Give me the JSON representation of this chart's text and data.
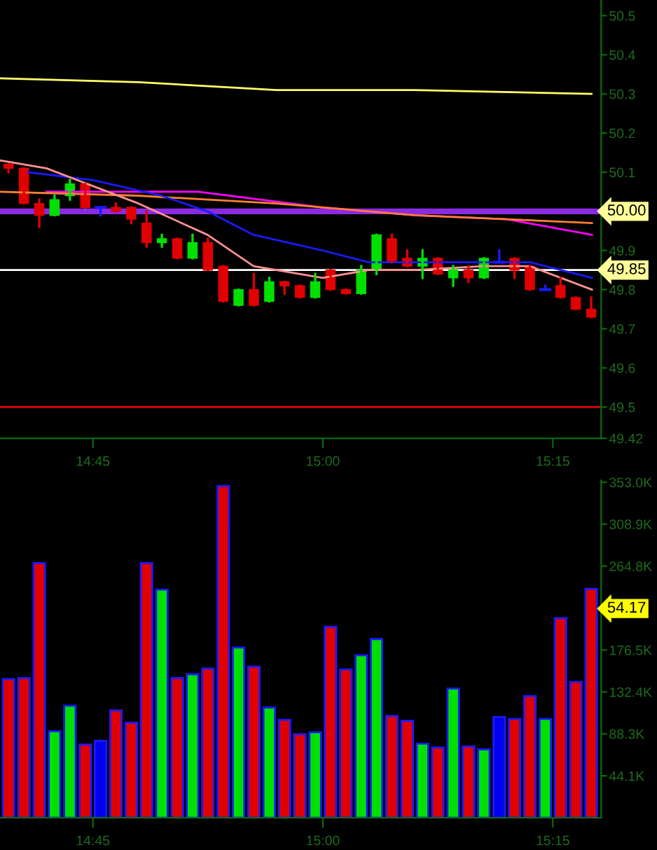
{
  "chart_data": [
    {
      "type": "candlestick",
      "x": [
        14.6583,
        14.675,
        14.6917,
        14.7083,
        14.725,
        14.7417,
        14.7583,
        14.775,
        14.7917,
        14.8083,
        14.825,
        14.8417,
        14.8583,
        14.875,
        14.8917,
        14.9083,
        14.925,
        14.9417,
        14.9583,
        14.975,
        14.9917,
        15.0083,
        15.025,
        15.0417,
        15.0583,
        15.075,
        15.0917,
        15.1083,
        15.125,
        15.1417,
        15.1583,
        15.175,
        15.1917,
        15.2083,
        15.225,
        15.2417,
        15.2583,
        15.275,
        15.2917
      ],
      "ohlc": [
        [
          50.12,
          50.12,
          50.1,
          50.11
        ],
        [
          50.11,
          50.11,
          50.02,
          50.02
        ],
        [
          50.02,
          50.03,
          49.96,
          49.99
        ],
        [
          49.99,
          50.04,
          49.99,
          50.03
        ],
        [
          50.04,
          50.08,
          50.03,
          50.07
        ],
        [
          50.07,
          50.07,
          50.01,
          50.01
        ],
        [
          50.01,
          50.01,
          49.99,
          50.01
        ],
        [
          50.01,
          50.02,
          50.0,
          50.0
        ],
        [
          50.01,
          50.01,
          49.97,
          49.98
        ],
        [
          49.97,
          50.0,
          49.91,
          49.92
        ],
        [
          49.92,
          49.94,
          49.91,
          49.93
        ],
        [
          49.93,
          49.93,
          49.88,
          49.88
        ],
        [
          49.88,
          49.94,
          49.88,
          49.92
        ],
        [
          49.92,
          49.93,
          49.85,
          49.85
        ],
        [
          49.86,
          49.86,
          49.77,
          49.77
        ],
        [
          49.76,
          49.8,
          49.76,
          49.8
        ],
        [
          49.8,
          49.84,
          49.76,
          49.76
        ],
        [
          49.77,
          49.83,
          49.77,
          49.82
        ],
        [
          49.82,
          49.82,
          49.79,
          49.81
        ],
        [
          49.81,
          49.81,
          49.78,
          49.78
        ],
        [
          49.78,
          49.84,
          49.78,
          49.82
        ],
        [
          49.85,
          49.85,
          49.8,
          49.8
        ],
        [
          49.8,
          49.8,
          49.79,
          49.79
        ],
        [
          49.79,
          49.86,
          49.79,
          49.85
        ],
        [
          49.85,
          49.94,
          49.84,
          49.94
        ],
        [
          49.93,
          49.94,
          49.87,
          49.87
        ],
        [
          49.88,
          49.9,
          49.86,
          49.86
        ],
        [
          49.86,
          49.9,
          49.83,
          49.88
        ],
        [
          49.88,
          49.88,
          49.84,
          49.84
        ],
        [
          49.83,
          49.86,
          49.81,
          49.85
        ],
        [
          49.85,
          49.86,
          49.82,
          49.83
        ],
        [
          49.83,
          49.88,
          49.83,
          49.88
        ],
        [
          49.87,
          49.9,
          49.87,
          49.87
        ],
        [
          49.88,
          49.88,
          49.83,
          49.85
        ],
        [
          49.86,
          49.86,
          49.8,
          49.8
        ],
        [
          49.8,
          49.81,
          49.8,
          49.8
        ],
        [
          49.81,
          49.83,
          49.78,
          49.78
        ],
        [
          49.78,
          49.78,
          49.75,
          49.75
        ],
        [
          49.75,
          49.78,
          49.73,
          49.73
        ]
      ],
      "series": [
        {
          "type": "line",
          "color": "#ffff66",
          "x": [
            14.6494,
            14.7996,
            14.9497,
            15.0998,
            15.292
          ],
          "values": [
            50.34,
            50.33,
            50.31,
            50.31,
            50.3
          ]
        },
        {
          "type": "line",
          "color": "#ff00ff",
          "x": [
            14.6995,
            14.8646,
            14.9997,
            15.0998,
            15.1999,
            15.2925
          ],
          "values": [
            50.05,
            50.05,
            50.01,
            49.99,
            49.98,
            49.94
          ]
        },
        {
          "type": "line",
          "color": "#ff8030",
          "x": [
            14.6494,
            14.7996,
            14.9497,
            15.0998,
            15.1999,
            15.2925
          ],
          "values": [
            50.05,
            50.04,
            50.02,
            49.99,
            49.98,
            49.97
          ]
        },
        {
          "type": "line",
          "color": "#1a1aff",
          "x": [
            14.6794,
            14.7495,
            14.8246,
            14.8746,
            14.9247,
            14.9997,
            15.0498,
            15.1499,
            15.225,
            15.2925
          ],
          "values": [
            50.1,
            50.08,
            50.04,
            50.0,
            49.94,
            49.9,
            49.87,
            49.87,
            49.87,
            49.83
          ]
        },
        {
          "type": "line",
          "color": "#ff9090",
          "x": [
            14.6494,
            14.6995,
            14.7996,
            14.8746,
            14.9247,
            14.9997,
            15.0498,
            15.0998,
            15.1749,
            15.225,
            15.2925
          ],
          "values": [
            50.13,
            50.11,
            50.02,
            49.94,
            49.86,
            49.83,
            49.85,
            49.85,
            49.86,
            49.86,
            49.8
          ]
        }
      ],
      "ref_lines": [
        {
          "axis": "y",
          "value": 50.0,
          "label": "50.00",
          "color": "#8a2be2"
        },
        {
          "axis": "y",
          "value": 49.85,
          "label": "49.85",
          "color": "#ffffff"
        },
        {
          "axis": "y",
          "value": 49.5,
          "label": null,
          "color": "#e00000"
        }
      ],
      "xlim": [
        14.649,
        15.3025
      ],
      "xticks": [
        {
          "value": 14.75,
          "label": "14:45"
        },
        {
          "value": 15.0,
          "label": "15:00"
        },
        {
          "value": 15.25,
          "label": "15:15"
        }
      ],
      "ylim": [
        49.42,
        50.54
      ],
      "yticks": [
        {
          "value": 49.42,
          "label": "49.42"
        },
        49.5,
        49.6,
        49.7,
        49.8,
        49.9,
        {
          "value": 50.0,
          "label": null
        },
        50.1,
        50.2,
        50.3,
        50.4,
        50.5
      ],
      "grid": false,
      "legend": false
    },
    {
      "type": "bar",
      "x": [
        14.6583,
        14.675,
        14.6917,
        14.7083,
        14.725,
        14.7417,
        14.7583,
        14.775,
        14.7917,
        14.8083,
        14.825,
        14.8417,
        14.8583,
        14.875,
        14.8917,
        14.9083,
        14.925,
        14.9417,
        14.9583,
        14.975,
        14.9917,
        15.0083,
        15.025,
        15.0417,
        15.0583,
        15.075,
        15.0917,
        15.1083,
        15.125,
        15.1417,
        15.1583,
        15.175,
        15.1917,
        15.2083,
        15.225,
        15.2417,
        15.2583,
        15.275,
        15.2917
      ],
      "values": [
        146,
        147,
        268,
        91,
        118,
        77,
        81,
        113,
        100,
        268,
        240,
        147,
        151,
        157,
        349,
        179,
        159,
        116,
        103,
        88,
        90,
        201,
        156,
        171,
        188,
        107,
        102,
        78,
        74,
        136,
        75,
        72,
        106,
        104,
        128,
        104,
        210,
        143,
        241
      ],
      "colors": [
        "#e00000",
        "#e00000",
        "#e00000",
        "#00e000",
        "#00e000",
        "#e00000",
        "#0000ee",
        "#e00000",
        "#e00000",
        "#e00000",
        "#00e000",
        "#e00000",
        "#00e000",
        "#e00000",
        "#e00000",
        "#00e000",
        "#e00000",
        "#00e000",
        "#e00000",
        "#e00000",
        "#00e000",
        "#e00000",
        "#e00000",
        "#00e000",
        "#00e000",
        "#e00000",
        "#e00000",
        "#00e000",
        "#e00000",
        "#00e000",
        "#e00000",
        "#00e000",
        "#0000ee",
        "#e00000",
        "#e00000",
        "#00e000",
        "#e00000",
        "#e00000",
        "#e00000"
      ],
      "annotations": [
        "54.17"
      ],
      "xlim": [
        14.649,
        15.3025
      ],
      "xticks": [
        {
          "value": 14.75,
          "label": "14:45"
        },
        {
          "value": 15.0,
          "label": "15:00"
        },
        {
          "value": 15.25,
          "label": "15:15"
        }
      ],
      "ylim": [
        0,
        355
      ],
      "yticks": [
        {
          "value": 44.1,
          "label": "44.1K"
        },
        {
          "value": 88.3,
          "label": "88.3K"
        },
        {
          "value": 132.4,
          "label": "132.4K"
        },
        {
          "value": 176.5,
          "label": "176.5K"
        },
        {
          "value": 220.6,
          "label": null
        },
        {
          "value": 264.8,
          "label": "264.8K"
        },
        {
          "value": 308.9,
          "label": "308.9K"
        },
        {
          "value": 353.0,
          "label": "353.0K"
        }
      ],
      "grid": false,
      "legend": false
    }
  ]
}
